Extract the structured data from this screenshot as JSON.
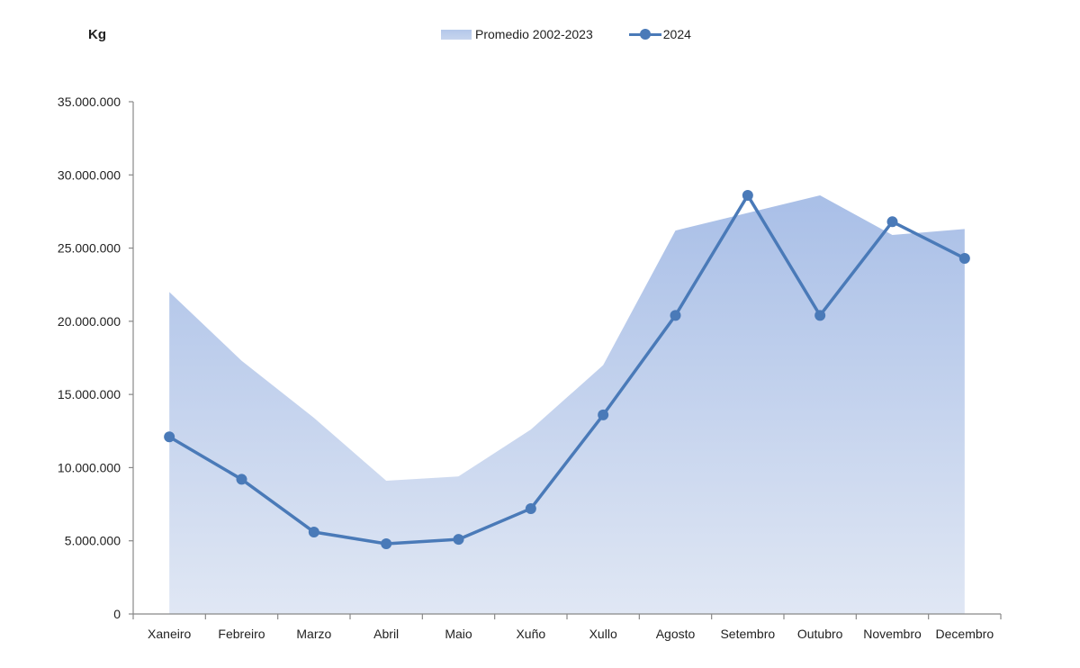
{
  "chart_data": {
    "type": "line",
    "unit_label": "Kg",
    "categories": [
      "Xaneiro",
      "Febreiro",
      "Marzo",
      "Abril",
      "Maio",
      "Xuño",
      "Xullo",
      "Agosto",
      "Setembro",
      "Outubro",
      "Novembro",
      "Decembro"
    ],
    "series": [
      {
        "name": "Promedio 2002-2023",
        "kind": "area",
        "color": "#b4c7e9",
        "values": [
          22000000,
          17300000,
          13400000,
          9100000,
          9400000,
          12600000,
          17000000,
          26200000,
          27400000,
          28600000,
          25900000,
          26300000
        ]
      },
      {
        "name": "2024",
        "kind": "line",
        "color": "#4a7ab8",
        "values": [
          12100000,
          9200000,
          5600000,
          4800000,
          5100000,
          7200000,
          13600000,
          20400000,
          28600000,
          20400000,
          26800000,
          24300000
        ]
      }
    ],
    "ylim": [
      0,
      35000000
    ],
    "yticks": [
      0,
      5000000,
      10000000,
      15000000,
      20000000,
      25000000,
      30000000,
      35000000
    ],
    "ytick_labels": [
      "0",
      "5.000.000",
      "10.000.000",
      "15.000.000",
      "20.000.000",
      "25.000.000",
      "30.000.000",
      "35.000.000"
    ],
    "legend_position": "top-center",
    "grid": false
  }
}
